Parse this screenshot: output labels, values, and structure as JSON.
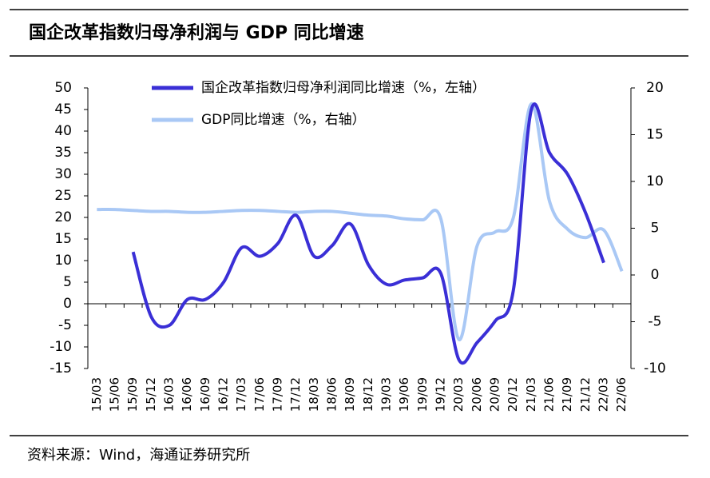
{
  "chart_data": {
    "type": "line",
    "title": "国企改革指数归母净利润与 GDP 同比增速",
    "source": "资料来源：Wind，海通证券研究所",
    "categories": [
      "15/03",
      "15/06",
      "15/09",
      "15/12",
      "16/03",
      "16/06",
      "16/09",
      "16/12",
      "17/03",
      "17/06",
      "17/09",
      "17/12",
      "18/03",
      "18/06",
      "18/09",
      "18/12",
      "19/03",
      "19/06",
      "19/09",
      "19/12",
      "20/03",
      "20/06",
      "20/09",
      "20/12",
      "21/03",
      "21/06",
      "21/09",
      "21/12",
      "22/03",
      "22/06"
    ],
    "series": [
      {
        "name": "国企改革指数归母净利润同比增速（%，左轴）",
        "color": "#3a2fd6",
        "axis": "y",
        "values": [
          null,
          null,
          12,
          -3,
          -5,
          1,
          1,
          5,
          13,
          11,
          14,
          20.5,
          11,
          13.5,
          18.5,
          9,
          4.5,
          5.5,
          6,
          7,
          -13,
          -9,
          -4,
          3,
          45,
          35,
          30,
          21,
          9.5,
          null
        ]
      },
      {
        "name": "GDP同比增速（%，右轴）",
        "color": "#a9c8f5",
        "axis": "y2",
        "values": [
          7.0,
          7.0,
          6.9,
          6.8,
          6.8,
          6.7,
          6.7,
          6.8,
          6.9,
          6.9,
          6.8,
          6.7,
          6.8,
          6.8,
          6.6,
          6.4,
          6.3,
          6.0,
          5.9,
          6.0,
          -6.9,
          3.1,
          4.6,
          6.1,
          18.3,
          7.9,
          4.9,
          4.0,
          4.8,
          0.4
        ]
      }
    ],
    "ylim": [
      -15,
      50
    ],
    "yticks": [
      -15,
      -10,
      -5,
      0,
      5,
      10,
      15,
      20,
      25,
      30,
      35,
      40,
      45,
      50
    ],
    "y2lim": [
      -10,
      20
    ],
    "y2ticks": [
      -10,
      -5,
      0,
      5,
      10,
      15,
      20
    ]
  }
}
